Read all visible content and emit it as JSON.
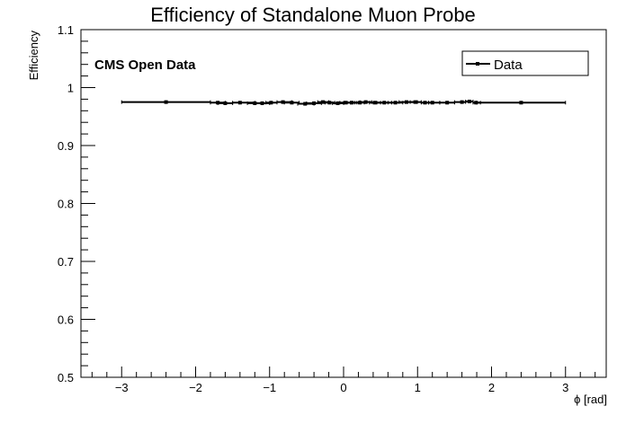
{
  "chart_data": {
    "type": "scatter",
    "title": "Efficiency of Standalone Muon Probe",
    "xlabel": "ϕ [rad]",
    "ylabel": "Efficiency",
    "xlim": [
      -3.55,
      3.55
    ],
    "ylim": [
      0.5,
      1.1
    ],
    "x_ticks": [
      -3,
      -2,
      -1,
      0,
      1,
      2,
      3
    ],
    "x_tick_labels": [
      "−3",
      "−2",
      "−1",
      "0",
      "1",
      "2",
      "3"
    ],
    "y_ticks": [
      0.5,
      0.6,
      0.7,
      0.8,
      0.9,
      1.0,
      1.1
    ],
    "y_tick_labels": [
      "0.5",
      "0.6",
      "0.7",
      "0.8",
      "0.9",
      "1",
      "1.1"
    ],
    "annotation": "CMS Open Data",
    "legend": {
      "position": "top-right",
      "entries": [
        "Data"
      ]
    },
    "grid": false,
    "series": [
      {
        "name": "Data",
        "points": [
          {
            "x": -2.4,
            "xlo": -3.0,
            "xhi": -1.8,
            "y": 0.975
          },
          {
            "x": -1.7,
            "xlo": -1.8,
            "xhi": -1.6,
            "y": 0.974
          },
          {
            "x": -1.6,
            "xlo": -1.7,
            "xhi": -1.5,
            "y": 0.973
          },
          {
            "x": -1.4,
            "xlo": -1.5,
            "xhi": -1.2,
            "y": 0.974
          },
          {
            "x": -1.2,
            "xlo": -1.3,
            "xhi": -1.1,
            "y": 0.973
          },
          {
            "x": -1.1,
            "xlo": -1.2,
            "xhi": -1.0,
            "y": 0.973
          },
          {
            "x": -0.98,
            "xlo": -1.05,
            "xhi": -0.9,
            "y": 0.974
          },
          {
            "x": -0.82,
            "xlo": -0.9,
            "xhi": -0.7,
            "y": 0.975
          },
          {
            "x": -0.7,
            "xlo": -0.8,
            "xhi": -0.6,
            "y": 0.974
          },
          {
            "x": -0.52,
            "xlo": -0.62,
            "xhi": -0.4,
            "y": 0.972
          },
          {
            "x": -0.4,
            "xlo": -0.5,
            "xhi": -0.3,
            "y": 0.973
          },
          {
            "x": -0.28,
            "xlo": -0.35,
            "xhi": -0.2,
            "y": 0.975
          },
          {
            "x": -0.19,
            "xlo": -0.25,
            "xhi": -0.12,
            "y": 0.974
          },
          {
            "x": -0.08,
            "xlo": -0.15,
            "xhi": 0.0,
            "y": 0.973
          },
          {
            "x": 0.02,
            "xlo": -0.05,
            "xhi": 0.1,
            "y": 0.974
          },
          {
            "x": 0.11,
            "xlo": 0.05,
            "xhi": 0.18,
            "y": 0.974
          },
          {
            "x": 0.22,
            "xlo": 0.15,
            "xhi": 0.28,
            "y": 0.974
          },
          {
            "x": 0.3,
            "xlo": 0.22,
            "xhi": 0.38,
            "y": 0.975
          },
          {
            "x": 0.42,
            "xlo": 0.35,
            "xhi": 0.5,
            "y": 0.974
          },
          {
            "x": 0.55,
            "xlo": 0.45,
            "xhi": 0.65,
            "y": 0.974
          },
          {
            "x": 0.7,
            "xlo": 0.6,
            "xhi": 0.8,
            "y": 0.974
          },
          {
            "x": 0.85,
            "xlo": 0.75,
            "xhi": 0.95,
            "y": 0.975
          },
          {
            "x": 0.98,
            "xlo": 0.9,
            "xhi": 1.05,
            "y": 0.975
          },
          {
            "x": 1.1,
            "xlo": 1.05,
            "xhi": 1.15,
            "y": 0.974
          },
          {
            "x": 1.2,
            "xlo": 1.15,
            "xhi": 1.3,
            "y": 0.974
          },
          {
            "x": 1.4,
            "xlo": 1.3,
            "xhi": 1.5,
            "y": 0.974
          },
          {
            "x": 1.6,
            "xlo": 1.5,
            "xhi": 1.65,
            "y": 0.975
          },
          {
            "x": 1.7,
            "xlo": 1.65,
            "xhi": 1.75,
            "y": 0.976
          },
          {
            "x": 1.79,
            "xlo": 1.75,
            "xhi": 1.85,
            "y": 0.974
          },
          {
            "x": 2.4,
            "xlo": 1.8,
            "xhi": 3.0,
            "y": 0.974
          }
        ]
      }
    ]
  }
}
